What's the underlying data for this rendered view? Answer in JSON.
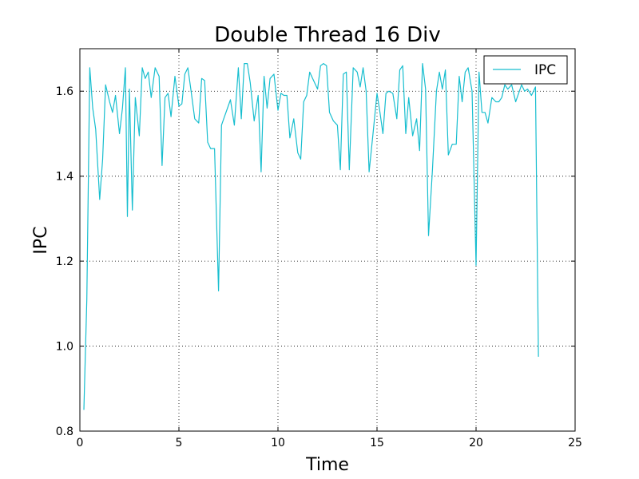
{
  "chart_data": {
    "type": "line",
    "title": "Double Thread 16 Div",
    "xlabel": "Time",
    "ylabel": "IPC",
    "xlim": [
      0,
      25
    ],
    "ylim": [
      0.8,
      1.7
    ],
    "xticks": [
      0,
      5,
      10,
      15,
      20,
      25
    ],
    "xtick_labels": [
      "0",
      "5",
      "10",
      "15",
      "20",
      "25"
    ],
    "yticks": [
      0.8,
      1.0,
      1.2,
      1.4,
      1.6
    ],
    "ytick_labels": [
      "0.8",
      "1.0",
      "1.2",
      "1.4",
      "1.6"
    ],
    "grid": true,
    "legend_position": "top-right",
    "series": [
      {
        "name": "IPC",
        "color": "#17becf",
        "x": [
          0.2,
          0.35,
          0.5,
          0.65,
          0.8,
          1.0,
          1.15,
          1.3,
          1.5,
          1.65,
          1.8,
          2.0,
          2.15,
          2.3,
          2.4,
          2.5,
          2.65,
          2.8,
          3.0,
          3.15,
          3.3,
          3.45,
          3.6,
          3.8,
          4.0,
          4.15,
          4.3,
          4.45,
          4.6,
          4.8,
          5.0,
          5.15,
          5.3,
          5.45,
          5.6,
          5.8,
          6.0,
          6.15,
          6.3,
          6.45,
          6.6,
          6.8,
          7.0,
          7.15,
          7.3,
          7.45,
          7.6,
          7.8,
          8.0,
          8.15,
          8.3,
          8.45,
          8.6,
          8.8,
          9.0,
          9.15,
          9.3,
          9.45,
          9.6,
          9.8,
          10.0,
          10.15,
          10.3,
          10.45,
          10.6,
          10.8,
          11.0,
          11.15,
          11.3,
          11.45,
          11.6,
          11.8,
          12.0,
          12.15,
          12.3,
          12.45,
          12.6,
          12.8,
          13.0,
          13.15,
          13.3,
          13.45,
          13.6,
          13.8,
          14.0,
          14.15,
          14.3,
          14.45,
          14.6,
          14.8,
          15.0,
          15.15,
          15.3,
          15.45,
          15.6,
          15.8,
          16.0,
          16.15,
          16.3,
          16.45,
          16.6,
          16.8,
          17.0,
          17.15,
          17.3,
          17.45,
          17.6,
          17.8,
          18.0,
          18.15,
          18.3,
          18.45,
          18.6,
          18.8,
          19.0,
          19.15,
          19.3,
          19.45,
          19.6,
          19.8,
          20.0,
          20.15,
          20.3,
          20.45,
          20.6,
          20.8,
          21.0,
          21.15,
          21.3,
          21.45,
          21.6,
          21.8,
          22.0,
          22.15,
          22.3,
          22.45,
          22.6,
          22.8,
          23.0,
          23.15
        ],
        "y": [
          0.85,
          1.11,
          1.655,
          1.56,
          1.51,
          1.345,
          1.44,
          1.615,
          1.575,
          1.55,
          1.59,
          1.5,
          1.56,
          1.655,
          1.305,
          1.605,
          1.32,
          1.585,
          1.495,
          1.655,
          1.63,
          1.645,
          1.585,
          1.655,
          1.635,
          1.425,
          1.585,
          1.595,
          1.54,
          1.635,
          1.565,
          1.57,
          1.64,
          1.655,
          1.605,
          1.535,
          1.525,
          1.63,
          1.625,
          1.48,
          1.465,
          1.465,
          1.13,
          1.52,
          1.54,
          1.56,
          1.58,
          1.52,
          1.655,
          1.535,
          1.665,
          1.665,
          1.62,
          1.53,
          1.59,
          1.41,
          1.635,
          1.56,
          1.63,
          1.64,
          1.555,
          1.595,
          1.59,
          1.59,
          1.49,
          1.535,
          1.455,
          1.44,
          1.575,
          1.59,
          1.645,
          1.625,
          1.605,
          1.66,
          1.665,
          1.66,
          1.55,
          1.53,
          1.52,
          1.415,
          1.64,
          1.645,
          1.415,
          1.655,
          1.645,
          1.61,
          1.655,
          1.6,
          1.41,
          1.5,
          1.595,
          1.55,
          1.5,
          1.595,
          1.6,
          1.595,
          1.535,
          1.65,
          1.66,
          1.5,
          1.585,
          1.495,
          1.535,
          1.46,
          1.665,
          1.605,
          1.26,
          1.415,
          1.6,
          1.645,
          1.605,
          1.65,
          1.45,
          1.475,
          1.475,
          1.635,
          1.575,
          1.645,
          1.655,
          1.6,
          1.19,
          1.645,
          1.55,
          1.55,
          1.525,
          1.585,
          1.575,
          1.575,
          1.585,
          1.615,
          1.605,
          1.615,
          1.575,
          1.595,
          1.615,
          1.6,
          1.605,
          1.59,
          1.61,
          0.975
        ]
      }
    ]
  }
}
